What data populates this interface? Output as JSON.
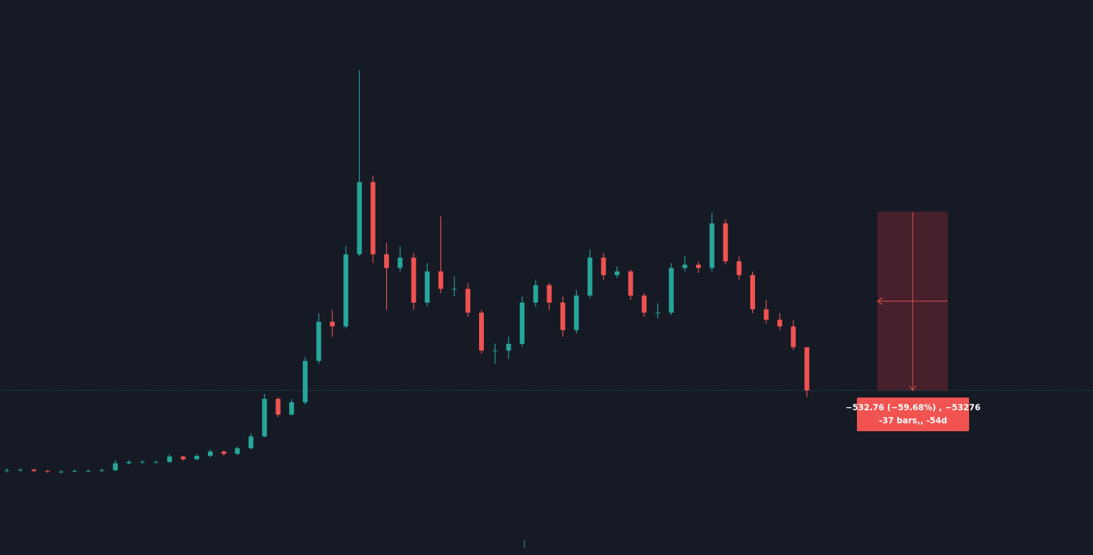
{
  "chart_data": {
    "type": "candlestick",
    "up_color": "#26a69a",
    "down_color": "#ef5350",
    "ylim": [
      -110,
      1524
    ],
    "last_price": 360,
    "series": {
      "open": [
        120,
        122,
        124,
        120,
        118,
        118,
        120,
        120,
        122,
        143,
        147,
        147,
        147,
        163,
        155,
        165,
        178,
        171,
        188,
        223,
        335,
        288,
        325,
        448,
        565,
        551,
        766,
        981,
        766,
        725,
        756,
        622,
        715,
        663,
        663,
        592,
        479,
        479,
        499,
        622,
        674,
        622,
        540,
        643,
        756,
        704,
        715,
        643,
        592,
        592,
        725,
        735,
        725,
        858,
        745,
        704,
        602,
        571,
        551,
        489
      ],
      "high": [
        128,
        128,
        127,
        123,
        122,
        124,
        124,
        127,
        152,
        153,
        152,
        151,
        170,
        166,
        170,
        184,
        182,
        194,
        232,
        350,
        340,
        335,
        460,
        590,
        600,
        790,
        1315,
        1000,
        800,
        790,
        770,
        740,
        879,
        700,
        680,
        600,
        500,
        520,
        640,
        690,
        680,
        640,
        660,
        780,
        770,
        730,
        720,
        650,
        620,
        740,
        760,
        745,
        889,
        870,
        760,
        715,
        630,
        590,
        570,
        489
      ],
      "low": [
        115,
        118,
        116,
        114,
        113,
        115,
        116,
        118,
        120,
        140,
        142,
        142,
        145,
        150,
        152,
        160,
        165,
        168,
        184,
        220,
        280,
        285,
        318,
        440,
        520,
        545,
        760,
        740,
        600,
        715,
        600,
        610,
        650,
        640,
        580,
        470,
        440,
        455,
        490,
        610,
        600,
        520,
        530,
        635,
        690,
        695,
        630,
        580,
        575,
        585,
        715,
        710,
        715,
        735,
        690,
        590,
        560,
        540,
        480,
        340
      ],
      "close": [
        122,
        124,
        120,
        118,
        118,
        120,
        120,
        122,
        143,
        147,
        147,
        147,
        163,
        155,
        165,
        178,
        171,
        188,
        223,
        335,
        288,
        325,
        448,
        565,
        551,
        766,
        981,
        766,
        725,
        756,
        622,
        715,
        663,
        663,
        592,
        479,
        479,
        499,
        622,
        674,
        622,
        540,
        643,
        756,
        704,
        715,
        643,
        592,
        592,
        725,
        735,
        725,
        858,
        745,
        704,
        602,
        571,
        551,
        489,
        360
      ]
    },
    "measure": {
      "from": 892.76,
      "to": 360,
      "text": [
        "−532.76 (−59.68%) , −53276",
        "-37 bars,, -54d"
      ]
    }
  }
}
